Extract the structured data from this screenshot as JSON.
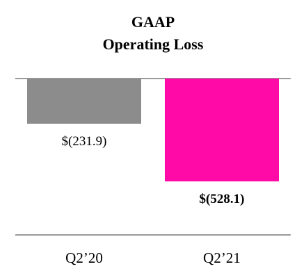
{
  "chart_data": {
    "type": "bar",
    "title_line1": "GAAP",
    "title_line2": "Operating Loss",
    "xlabel": "",
    "ylabel": "",
    "categories": [
      "Q2’20",
      "Q2’21"
    ],
    "values": [
      -231.9,
      -528.1
    ],
    "data_labels": [
      "$(231.9)",
      "$(528.1)"
    ],
    "data_label_bold": [
      false,
      true
    ],
    "ylim": [
      -600,
      0
    ],
    "grid": false,
    "legend": "none",
    "colors": [
      "#8c8c8c",
      "#ff0aa6"
    ],
    "axis_color": "#9a9a9a"
  }
}
